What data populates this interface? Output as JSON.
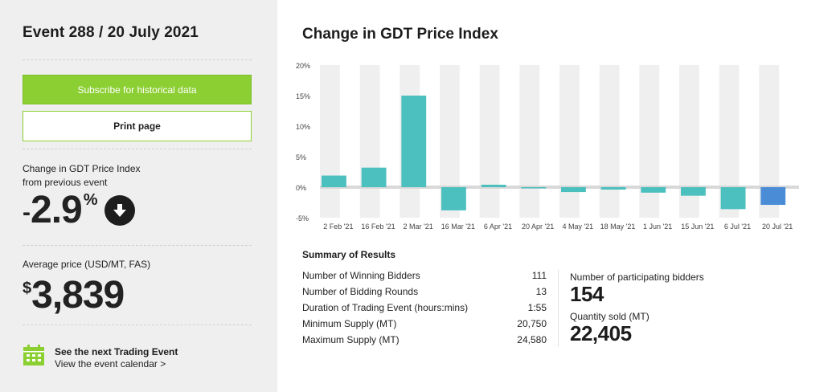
{
  "sidebar": {
    "event_title": "Event 288 / 20 July 2021",
    "subscribe_label": "Subscribe for historical data",
    "print_label": "Print page",
    "change_label_line1": "Change in GDT Price Index",
    "change_label_line2": "from previous event",
    "change_sign": "-",
    "change_value": "2.9",
    "change_unit": "%",
    "change_direction_icon": "arrow-down-circle-icon",
    "avg_price_label": "Average price (USD/MT, FAS)",
    "avg_price_currency": "$",
    "avg_price_value": "3,839",
    "next_event_title": "See the next Trading Event",
    "next_event_link": "View the event calendar >",
    "calendar_icon": "calendar-icon",
    "accent_color": "#8ccf33"
  },
  "main": {
    "title": "Change in GDT Price Index",
    "summary_title": "Summary of Results",
    "stats": [
      {
        "label": "Number of Winning Bidders",
        "value": "111"
      },
      {
        "label": "Number of Bidding Rounds",
        "value": "13"
      },
      {
        "label": "Duration of Trading Event (hours:mins)",
        "value": "1:55"
      },
      {
        "label": "Minimum Supply (MT)",
        "value": "20,750"
      },
      {
        "label": "Maximum Supply (MT)",
        "value": "24,580"
      }
    ],
    "participating_label": "Number of participating bidders",
    "participating_value": "154",
    "quantity_label": "Quantity sold (MT)",
    "quantity_value": "22,405"
  },
  "chart_data": {
    "type": "bar",
    "title": "Change in GDT Price Index",
    "categories": [
      "2 Feb '21",
      "16 Feb '21",
      "2 Mar '21",
      "16 Mar '21",
      "6 Apr '21",
      "20 Apr '21",
      "4 May '21",
      "18 May '21",
      "1 Jun '21",
      "15 Jun '21",
      "6 Jul '21",
      "20 Jul '21"
    ],
    "values": [
      1.9,
      3.2,
      15.0,
      -3.8,
      0.4,
      -0.2,
      -0.8,
      -0.4,
      -0.9,
      -1.4,
      -3.6,
      -2.9
    ],
    "ylim": [
      -5,
      20
    ],
    "yticks": [
      20,
      15,
      10,
      5,
      0,
      -5
    ],
    "ytick_labels": [
      "20%",
      "15%",
      "10%",
      "5%",
      "0%",
      "-5%"
    ],
    "grid": true,
    "colors": {
      "bar": "#4cbfbf",
      "highlight": "#4a8dd6",
      "band": "#efefef",
      "zero_line": "#d8d8d8"
    }
  }
}
